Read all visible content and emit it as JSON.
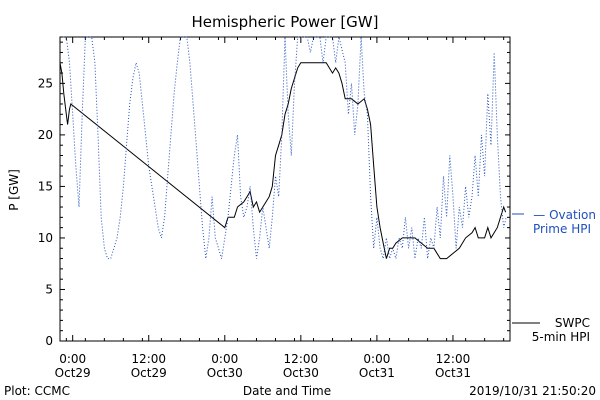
{
  "chart_data": {
    "type": "line",
    "title": "Hemispheric Power [GW]",
    "xlabel": "Date and Time",
    "ylabel": "P [GW]",
    "ylim": [
      0,
      29.5
    ],
    "xlim_hours": [
      -2,
      69
    ],
    "yticks": [
      0,
      5,
      10,
      15,
      20,
      25
    ],
    "xticks": [
      {
        "hour": 0,
        "time": "0:00",
        "date": "Oct29"
      },
      {
        "hour": 12,
        "time": "12:00",
        "date": "Oct29"
      },
      {
        "hour": 24,
        "time": "0:00",
        "date": "Oct30"
      },
      {
        "hour": 36,
        "time": "12:00",
        "date": "Oct30"
      },
      {
        "hour": 48,
        "time": "0:00",
        "date": "Oct31"
      },
      {
        "hour": 60,
        "time": "12:00",
        "date": "Oct31"
      }
    ],
    "x_unit": "hours since 2019-10-29 00:00",
    "series": [
      {
        "name": "SWPC 5-min HPI",
        "style": "solid",
        "color": "#000000",
        "points": [
          [
            -2.0,
            27.0
          ],
          [
            -1.7,
            26.0
          ],
          [
            -1.4,
            24.0
          ],
          [
            -1.0,
            22.0
          ],
          [
            -0.8,
            21.0
          ],
          [
            -0.5,
            22.5
          ],
          [
            -0.3,
            23.0
          ],
          [
            24.0,
            11.0
          ],
          [
            24.5,
            12.0
          ],
          [
            25.5,
            12.0
          ],
          [
            26.0,
            13.0
          ],
          [
            27.0,
            13.5
          ],
          [
            27.5,
            14.0
          ],
          [
            28.0,
            14.5
          ],
          [
            28.5,
            13.0
          ],
          [
            29.0,
            13.5
          ],
          [
            29.5,
            12.5
          ],
          [
            30.0,
            13.0
          ],
          [
            30.5,
            13.5
          ],
          [
            31.0,
            14.0
          ],
          [
            31.5,
            15.0
          ],
          [
            32.0,
            18.0
          ],
          [
            32.5,
            19.0
          ],
          [
            33.0,
            20.0
          ],
          [
            33.5,
            22.0
          ],
          [
            34.0,
            23.0
          ],
          [
            34.5,
            24.5
          ],
          [
            35.0,
            25.5
          ],
          [
            35.5,
            26.5
          ],
          [
            36.0,
            27.0
          ],
          [
            37.0,
            27.0
          ],
          [
            38.0,
            27.0
          ],
          [
            39.0,
            27.0
          ],
          [
            40.0,
            27.0
          ],
          [
            41.0,
            26.0
          ],
          [
            41.5,
            26.5
          ],
          [
            42.0,
            26.0
          ],
          [
            42.5,
            25.0
          ],
          [
            43.0,
            23.5
          ],
          [
            44.0,
            23.5
          ],
          [
            45.0,
            23.0
          ],
          [
            46.0,
            23.5
          ],
          [
            46.5,
            22.5
          ],
          [
            47.0,
            21.0
          ],
          [
            47.5,
            17.0
          ],
          [
            48.0,
            13.0
          ],
          [
            48.5,
            11.0
          ],
          [
            49.0,
            9.5
          ],
          [
            49.5,
            8.0
          ],
          [
            50.0,
            9.0
          ],
          [
            50.5,
            9.0
          ],
          [
            51.0,
            9.5
          ],
          [
            52.0,
            10.0
          ],
          [
            53.0,
            10.0
          ],
          [
            54.0,
            10.0
          ],
          [
            55.0,
            9.5
          ],
          [
            56.0,
            9.0
          ],
          [
            57.0,
            9.0
          ],
          [
            58.0,
            8.0
          ],
          [
            59.0,
            8.0
          ],
          [
            60.0,
            8.5
          ],
          [
            61.0,
            9.0
          ],
          [
            62.0,
            10.0
          ],
          [
            63.0,
            10.5
          ],
          [
            63.5,
            11.0
          ],
          [
            64.0,
            10.0
          ],
          [
            65.0,
            10.0
          ],
          [
            65.5,
            11.0
          ],
          [
            66.0,
            10.0
          ],
          [
            67.0,
            11.0
          ],
          [
            67.5,
            12.0
          ],
          [
            68.0,
            13.0
          ],
          [
            68.3,
            12.5
          ]
        ]
      },
      {
        "name": "Ovation Prime HPI",
        "style": "dotted",
        "color": "#1f4fbf",
        "points": [
          [
            -1.5,
            29.5
          ],
          [
            -1.0,
            29.5
          ],
          [
            -0.5,
            27.0
          ],
          [
            0.0,
            22.0
          ],
          [
            0.5,
            17.0
          ],
          [
            1.0,
            13.0
          ],
          [
            1.5,
            22.0
          ],
          [
            2.0,
            29.5
          ],
          [
            3.0,
            29.5
          ],
          [
            3.5,
            27.0
          ],
          [
            4.0,
            20.0
          ],
          [
            4.5,
            12.0
          ],
          [
            5.0,
            9.0
          ],
          [
            5.5,
            8.0
          ],
          [
            6.0,
            8.0
          ],
          [
            6.5,
            9.0
          ],
          [
            7.0,
            10.0
          ],
          [
            7.5,
            12.0
          ],
          [
            8.0,
            15.0
          ],
          [
            8.5,
            19.0
          ],
          [
            9.0,
            23.0
          ],
          [
            9.5,
            25.5
          ],
          [
            10.0,
            27.0
          ],
          [
            10.5,
            26.0
          ],
          [
            11.0,
            23.0
          ],
          [
            11.5,
            20.0
          ],
          [
            12.0,
            17.0
          ],
          [
            12.5,
            15.0
          ],
          [
            13.0,
            13.0
          ],
          [
            13.5,
            11.0
          ],
          [
            14.0,
            10.0
          ],
          [
            14.5,
            12.0
          ],
          [
            15.0,
            16.0
          ],
          [
            15.5,
            20.0
          ],
          [
            16.0,
            24.0
          ],
          [
            16.5,
            27.0
          ],
          [
            17.0,
            29.5
          ],
          [
            18.0,
            29.5
          ],
          [
            18.5,
            27.0
          ],
          [
            19.0,
            23.0
          ],
          [
            19.5,
            19.0
          ],
          [
            20.0,
            15.0
          ],
          [
            20.5,
            11.0
          ],
          [
            21.0,
            8.0
          ],
          [
            21.5,
            10.0
          ],
          [
            22.0,
            14.0
          ],
          [
            22.5,
            10.0
          ],
          [
            23.0,
            9.0
          ],
          [
            23.5,
            8.0
          ],
          [
            24.0,
            10.0
          ],
          [
            24.5,
            12.0
          ],
          [
            25.0,
            15.0
          ],
          [
            25.5,
            18.0
          ],
          [
            26.0,
            20.0
          ],
          [
            26.5,
            14.0
          ],
          [
            27.0,
            12.0
          ],
          [
            27.5,
            13.0
          ],
          [
            28.0,
            15.0
          ],
          [
            28.5,
            11.0
          ],
          [
            29.0,
            8.0
          ],
          [
            29.5,
            10.0
          ],
          [
            30.0,
            13.0
          ],
          [
            30.5,
            11.0
          ],
          [
            31.0,
            9.0
          ],
          [
            31.5,
            12.0
          ],
          [
            32.0,
            16.0
          ],
          [
            32.5,
            14.0
          ],
          [
            33.0,
            20.0
          ],
          [
            33.5,
            29.5
          ],
          [
            34.0,
            22.0
          ],
          [
            34.5,
            18.0
          ],
          [
            35.0,
            25.0
          ],
          [
            35.5,
            29.5
          ],
          [
            36.0,
            29.5
          ],
          [
            37.0,
            29.5
          ],
          [
            37.5,
            28.0
          ],
          [
            38.0,
            29.5
          ],
          [
            39.0,
            29.5
          ],
          [
            39.5,
            27.0
          ],
          [
            40.0,
            29.5
          ],
          [
            41.0,
            29.5
          ],
          [
            41.5,
            27.0
          ],
          [
            42.0,
            29.5
          ],
          [
            43.0,
            27.0
          ],
          [
            43.5,
            22.0
          ],
          [
            44.0,
            25.0
          ],
          [
            44.5,
            20.0
          ],
          [
            45.0,
            23.0
          ],
          [
            45.5,
            29.5
          ],
          [
            46.0,
            24.0
          ],
          [
            46.5,
            22.0
          ],
          [
            47.0,
            14.0
          ],
          [
            47.5,
            9.0
          ],
          [
            48.0,
            12.0
          ],
          [
            48.5,
            9.0
          ],
          [
            49.0,
            8.0
          ],
          [
            49.5,
            10.0
          ],
          [
            50.0,
            8.0
          ],
          [
            50.5,
            9.0
          ],
          [
            51.0,
            8.0
          ],
          [
            51.5,
            10.0
          ],
          [
            52.0,
            9.0
          ],
          [
            52.5,
            12.0
          ],
          [
            53.0,
            9.0
          ],
          [
            53.5,
            11.0
          ],
          [
            54.0,
            8.0
          ],
          [
            54.5,
            10.0
          ],
          [
            55.0,
            9.0
          ],
          [
            55.5,
            12.0
          ],
          [
            56.0,
            8.0
          ],
          [
            56.5,
            10.0
          ],
          [
            57.0,
            9.0
          ],
          [
            57.5,
            13.0
          ],
          [
            58.0,
            10.0
          ],
          [
            58.5,
            16.0
          ],
          [
            59.0,
            12.0
          ],
          [
            59.5,
            18.0
          ],
          [
            60.0,
            14.0
          ],
          [
            60.5,
            9.0
          ],
          [
            61.0,
            13.0
          ],
          [
            61.5,
            11.0
          ],
          [
            62.0,
            15.0
          ],
          [
            62.5,
            12.0
          ],
          [
            63.0,
            14.0
          ],
          [
            63.5,
            18.0
          ],
          [
            64.0,
            14.0
          ],
          [
            64.5,
            20.0
          ],
          [
            65.0,
            16.0
          ],
          [
            65.5,
            24.0
          ],
          [
            66.0,
            19.0
          ],
          [
            66.5,
            28.0
          ],
          [
            67.0,
            20.0
          ],
          [
            67.5,
            14.0
          ],
          [
            68.0,
            11.0
          ],
          [
            68.4,
            12.0
          ]
        ]
      }
    ],
    "legend": [
      {
        "lines": [
          "— Ovation",
          "Prime HPI"
        ],
        "color": "#1f4fbf"
      },
      {
        "lines": [
          "SWPC",
          "5-min HPI"
        ],
        "color": "#000000"
      }
    ]
  },
  "footer": {
    "plot_credit": "Plot: CCMC",
    "timestamp": "2019/10/31 21:50:20"
  }
}
